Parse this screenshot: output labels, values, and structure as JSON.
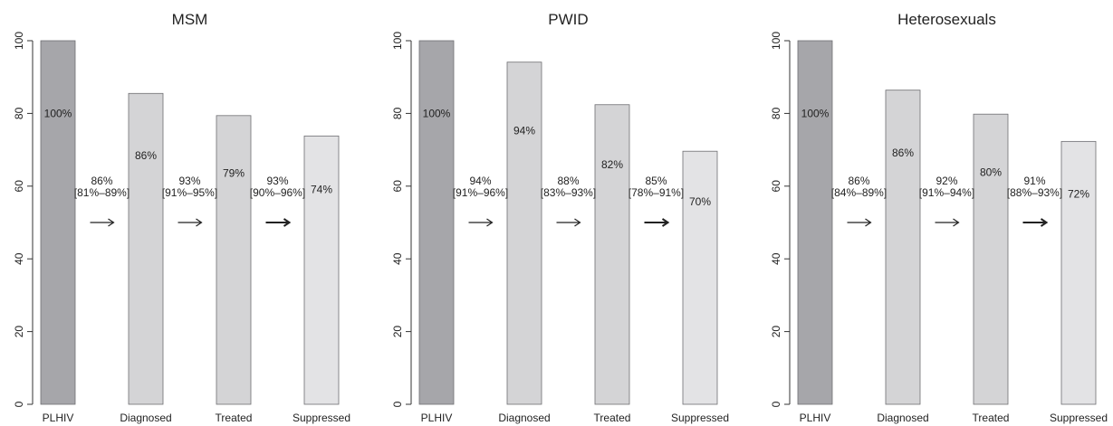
{
  "chart_data": [
    {
      "type": "bar",
      "title": "MSM",
      "categories": [
        "PLHIV",
        "Diagnosed",
        "Treated",
        "Suppressed"
      ],
      "values": [
        100,
        85.5,
        79.4,
        73.8
      ],
      "bar_labels": [
        "100%",
        "86%",
        "79%",
        "74%"
      ],
      "transitions": [
        {
          "value": "86%",
          "ci": "[81%–89%]"
        },
        {
          "value": "93%",
          "ci": "[91%–95%]"
        },
        {
          "value": "93%",
          "ci": "[90%–96%]"
        }
      ],
      "yticks": [
        0,
        20,
        40,
        60,
        80,
        100
      ],
      "ylim": [
        0,
        100
      ],
      "xlabel": "",
      "ylabel": "",
      "grid": false,
      "bar_colors": [
        "#a6a6aa",
        "#d4d4d6",
        "#d4d4d6",
        "#e3e3e5"
      ]
    },
    {
      "type": "bar",
      "title": "PWID",
      "categories": [
        "PLHIV",
        "Diagnosed",
        "Treated",
        "Suppressed"
      ],
      "values": [
        100,
        94.1,
        82.4,
        69.6
      ],
      "bar_labels": [
        "100%",
        "94%",
        "82%",
        "70%"
      ],
      "transitions": [
        {
          "value": "94%",
          "ci": "[91%–96%]"
        },
        {
          "value": "88%",
          "ci": "[83%–93%]"
        },
        {
          "value": "85%",
          "ci": "[78%–91%]"
        }
      ],
      "yticks": [
        0,
        20,
        40,
        60,
        80,
        100
      ],
      "ylim": [
        0,
        100
      ],
      "xlabel": "",
      "ylabel": "",
      "grid": false,
      "bar_colors": [
        "#a6a6aa",
        "#d4d4d6",
        "#d4d4d6",
        "#e3e3e5"
      ]
    },
    {
      "type": "bar",
      "title": "Heterosexuals",
      "categories": [
        "PLHIV",
        "Diagnosed",
        "Treated",
        "Suppressed"
      ],
      "values": [
        100,
        86.4,
        79.8,
        72.3
      ],
      "bar_labels": [
        "100%",
        "86%",
        "80%",
        "72%"
      ],
      "transitions": [
        {
          "value": "86%",
          "ci": "[84%–89%]"
        },
        {
          "value": "92%",
          "ci": "[91%–94%]"
        },
        {
          "value": "91%",
          "ci": "[88%–93%]"
        }
      ],
      "yticks": [
        0,
        20,
        40,
        60,
        80,
        100
      ],
      "ylim": [
        0,
        100
      ],
      "xlabel": "",
      "ylabel": "",
      "grid": false,
      "bar_colors": [
        "#a6a6aa",
        "#d4d4d6",
        "#d4d4d6",
        "#e3e3e5"
      ]
    }
  ]
}
